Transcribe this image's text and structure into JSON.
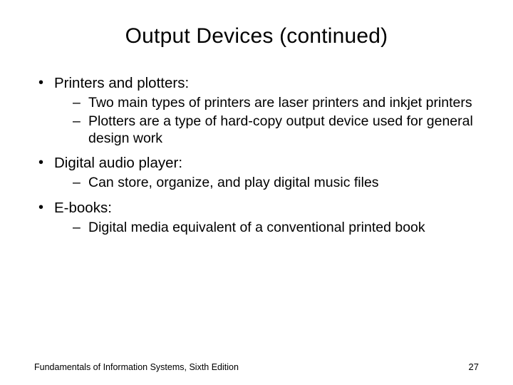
{
  "title": "Output Devices (continued)",
  "bullets": {
    "b1": "Printers and plotters:",
    "b1_sub1": "Two main types of printers are laser printers and inkjet printers",
    "b1_sub2": "Plotters are a type of hard-copy output device used for general design work",
    "b2": "Digital audio player:",
    "b2_sub1": "Can store, organize, and play digital music files",
    "b3": "E-books:",
    "b3_sub1": "Digital media equivalent of a conventional printed book"
  },
  "footer": {
    "left": "Fundamentals of Information Systems, Sixth Edition",
    "page": "27"
  },
  "colors": {
    "background": "#ffffff",
    "text": "#000000"
  },
  "fonts": {
    "title_size_pt": 30,
    "body_size_pt": 20,
    "footer_size_pt": 12
  }
}
